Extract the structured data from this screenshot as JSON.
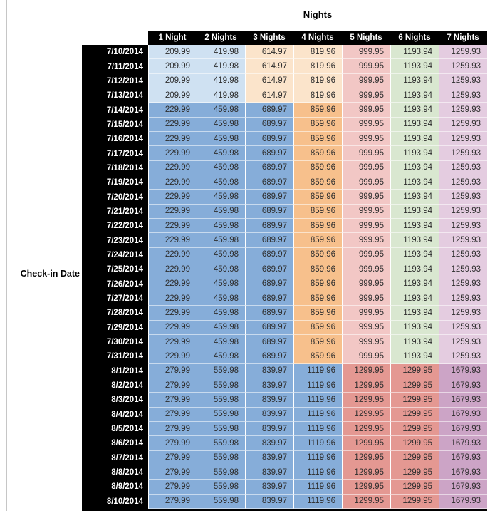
{
  "colors": {
    "blue-light": "#cfe1f2",
    "blue-med": "#86add9",
    "orange-light": "#fbe4cb",
    "orange-med": "#f7c08c",
    "pink-light": "#f2c7c5",
    "pink-med": "#e49892",
    "green-light": "#d9e7d0",
    "mauve-light": "#e4cce0",
    "mauve-med": "#cca4c6",
    "header_bg": "#000000",
    "header_text": "#ffffff",
    "value_text": "#2e2e2e"
  },
  "chart_data": {
    "type": "table",
    "title": "Nights",
    "row_axis_label": "Check-in Date",
    "columns": [
      "1 Night",
      "2 Nights",
      "3 Nights",
      "4 Nights",
      "5 Nights",
      "6 Nights",
      "7 Nights"
    ],
    "row_groups": [
      {
        "dates": [
          "7/10/2014",
          "7/11/2014",
          "7/12/2014",
          "7/13/2014"
        ],
        "values": [
          "209.99",
          "419.98",
          "614.97",
          "819.96",
          "999.95",
          "1193.94",
          "1259.93"
        ],
        "cell_styles": [
          "blue-light",
          "blue-light",
          "orange-light",
          "orange-light",
          "pink-light",
          "green-light",
          "mauve-light"
        ]
      },
      {
        "dates": [
          "7/14/2014",
          "7/15/2014",
          "7/16/2014",
          "7/17/2014",
          "7/18/2014",
          "7/19/2014",
          "7/20/2014",
          "7/21/2014",
          "7/22/2014",
          "7/23/2014",
          "7/24/2014",
          "7/25/2014",
          "7/26/2014",
          "7/27/2014",
          "7/28/2014",
          "7/29/2014",
          "7/30/2014",
          "7/31/2014"
        ],
        "values": [
          "229.99",
          "459.98",
          "689.97",
          "859.96",
          "999.95",
          "1193.94",
          "1259.93"
        ],
        "cell_styles": [
          "blue-med",
          "blue-med",
          "blue-med",
          "orange-med",
          "pink-light",
          "green-light",
          "mauve-light"
        ]
      },
      {
        "dates": [
          "8/1/2014",
          "8/2/2014",
          "8/3/2014",
          "8/4/2014",
          "8/5/2014",
          "8/6/2014",
          "8/7/2014",
          "8/8/2014",
          "8/9/2014",
          "8/10/2014"
        ],
        "values": [
          "279.99",
          "559.98",
          "839.97",
          "1119.96",
          "1299.95",
          "1299.95",
          "1679.93"
        ],
        "cell_styles": [
          "blue-med",
          "blue-med",
          "blue-med",
          "blue-med",
          "pink-med",
          "pink-med",
          "mauve-med"
        ]
      }
    ]
  }
}
